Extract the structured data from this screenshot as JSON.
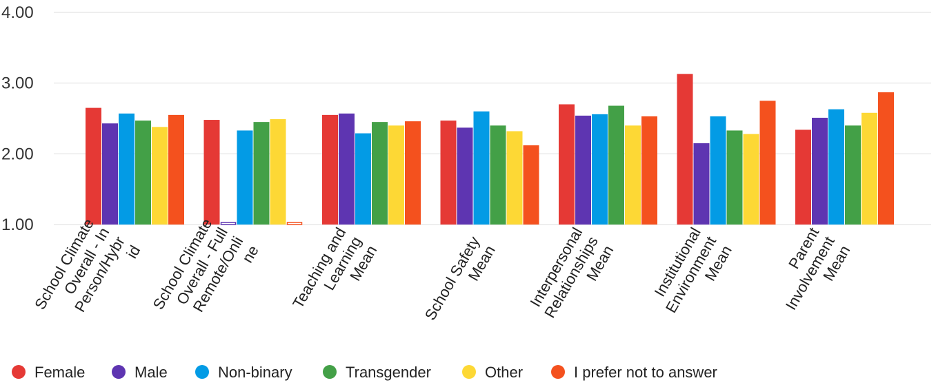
{
  "chart_data": {
    "type": "bar",
    "title": "",
    "xlabel": "",
    "ylabel": "",
    "ylim": [
      1,
      4
    ],
    "yticks": [
      "1.00",
      "2.00",
      "3.00",
      "4.00"
    ],
    "grid": true,
    "legend_position": "bottom",
    "categories": [
      [
        "School Climate",
        "Overall - In",
        "Person/Hybr",
        "id"
      ],
      [
        "School Climate",
        "Overall - Full",
        "Remote/Onli",
        "ne"
      ],
      [
        "Teaching and",
        "Learning",
        "Mean"
      ],
      [
        "School Safety",
        "Mean"
      ],
      [
        "Interpersonal",
        "Relationships",
        "Mean"
      ],
      [
        "Institutional",
        "Environment",
        "Mean"
      ],
      [
        "Parent",
        "Involvement",
        "Mean"
      ]
    ],
    "series": [
      {
        "name": "Female",
        "color": "#e53935",
        "values": [
          2.65,
          2.48,
          2.55,
          2.47,
          2.7,
          3.13,
          2.34
        ]
      },
      {
        "name": "Male",
        "color": "#5e35b1",
        "values": [
          2.43,
          null,
          2.57,
          2.37,
          2.54,
          2.15,
          2.51
        ]
      },
      {
        "name": "Non-binary",
        "color": "#039be5",
        "values": [
          2.57,
          2.33,
          2.29,
          2.6,
          2.56,
          2.53,
          2.63
        ]
      },
      {
        "name": "Transgender",
        "color": "#43a047",
        "values": [
          2.47,
          2.45,
          2.45,
          2.4,
          2.68,
          2.33,
          2.4
        ]
      },
      {
        "name": "Other",
        "color": "#fdd835",
        "values": [
          2.38,
          2.49,
          2.4,
          2.32,
          2.4,
          2.28,
          2.58
        ]
      },
      {
        "name": "I prefer not to answer",
        "color": "#f4511e",
        "values": [
          2.55,
          null,
          2.46,
          2.12,
          2.53,
          2.75,
          2.87
        ]
      }
    ]
  }
}
